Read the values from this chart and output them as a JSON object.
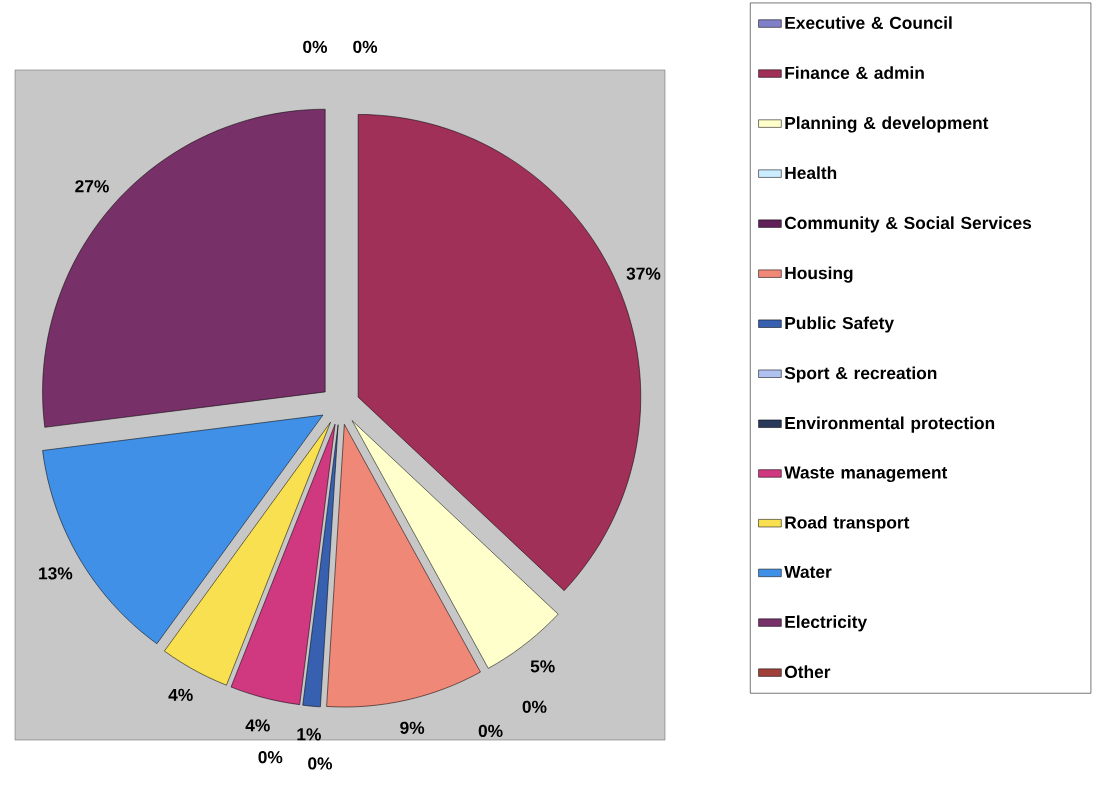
{
  "chart_data": {
    "type": "pie",
    "categories": [
      "Executive & Council",
      "Finance & admin",
      "Planning & development",
      "Health",
      "Community & Social Services",
      "Housing",
      "Public Safety",
      "Sport & recreation",
      "Environmental protection",
      "Waste management",
      "Road transport",
      "Water",
      "Electricity",
      "Other"
    ],
    "values": [
      0,
      37,
      5,
      0,
      0,
      9,
      1,
      0,
      0,
      4,
      4,
      13,
      27,
      0
    ],
    "value_labels": [
      "0%",
      "37%",
      "5%",
      "0%",
      "0%",
      "9%",
      "1%",
      "0%",
      "0%",
      "4%",
      "4%",
      "13%",
      "27%",
      "0%"
    ],
    "colors": [
      "#8080c8",
      "#a03058",
      "#ffffcc",
      "#ccecff",
      "#602058",
      "#f08878",
      "#3860b0",
      "#b0c0f0",
      "#283858",
      "#d03880",
      "#f8e050",
      "#4090e8",
      "#783068",
      "#a04038"
    ],
    "legend": "right"
  }
}
